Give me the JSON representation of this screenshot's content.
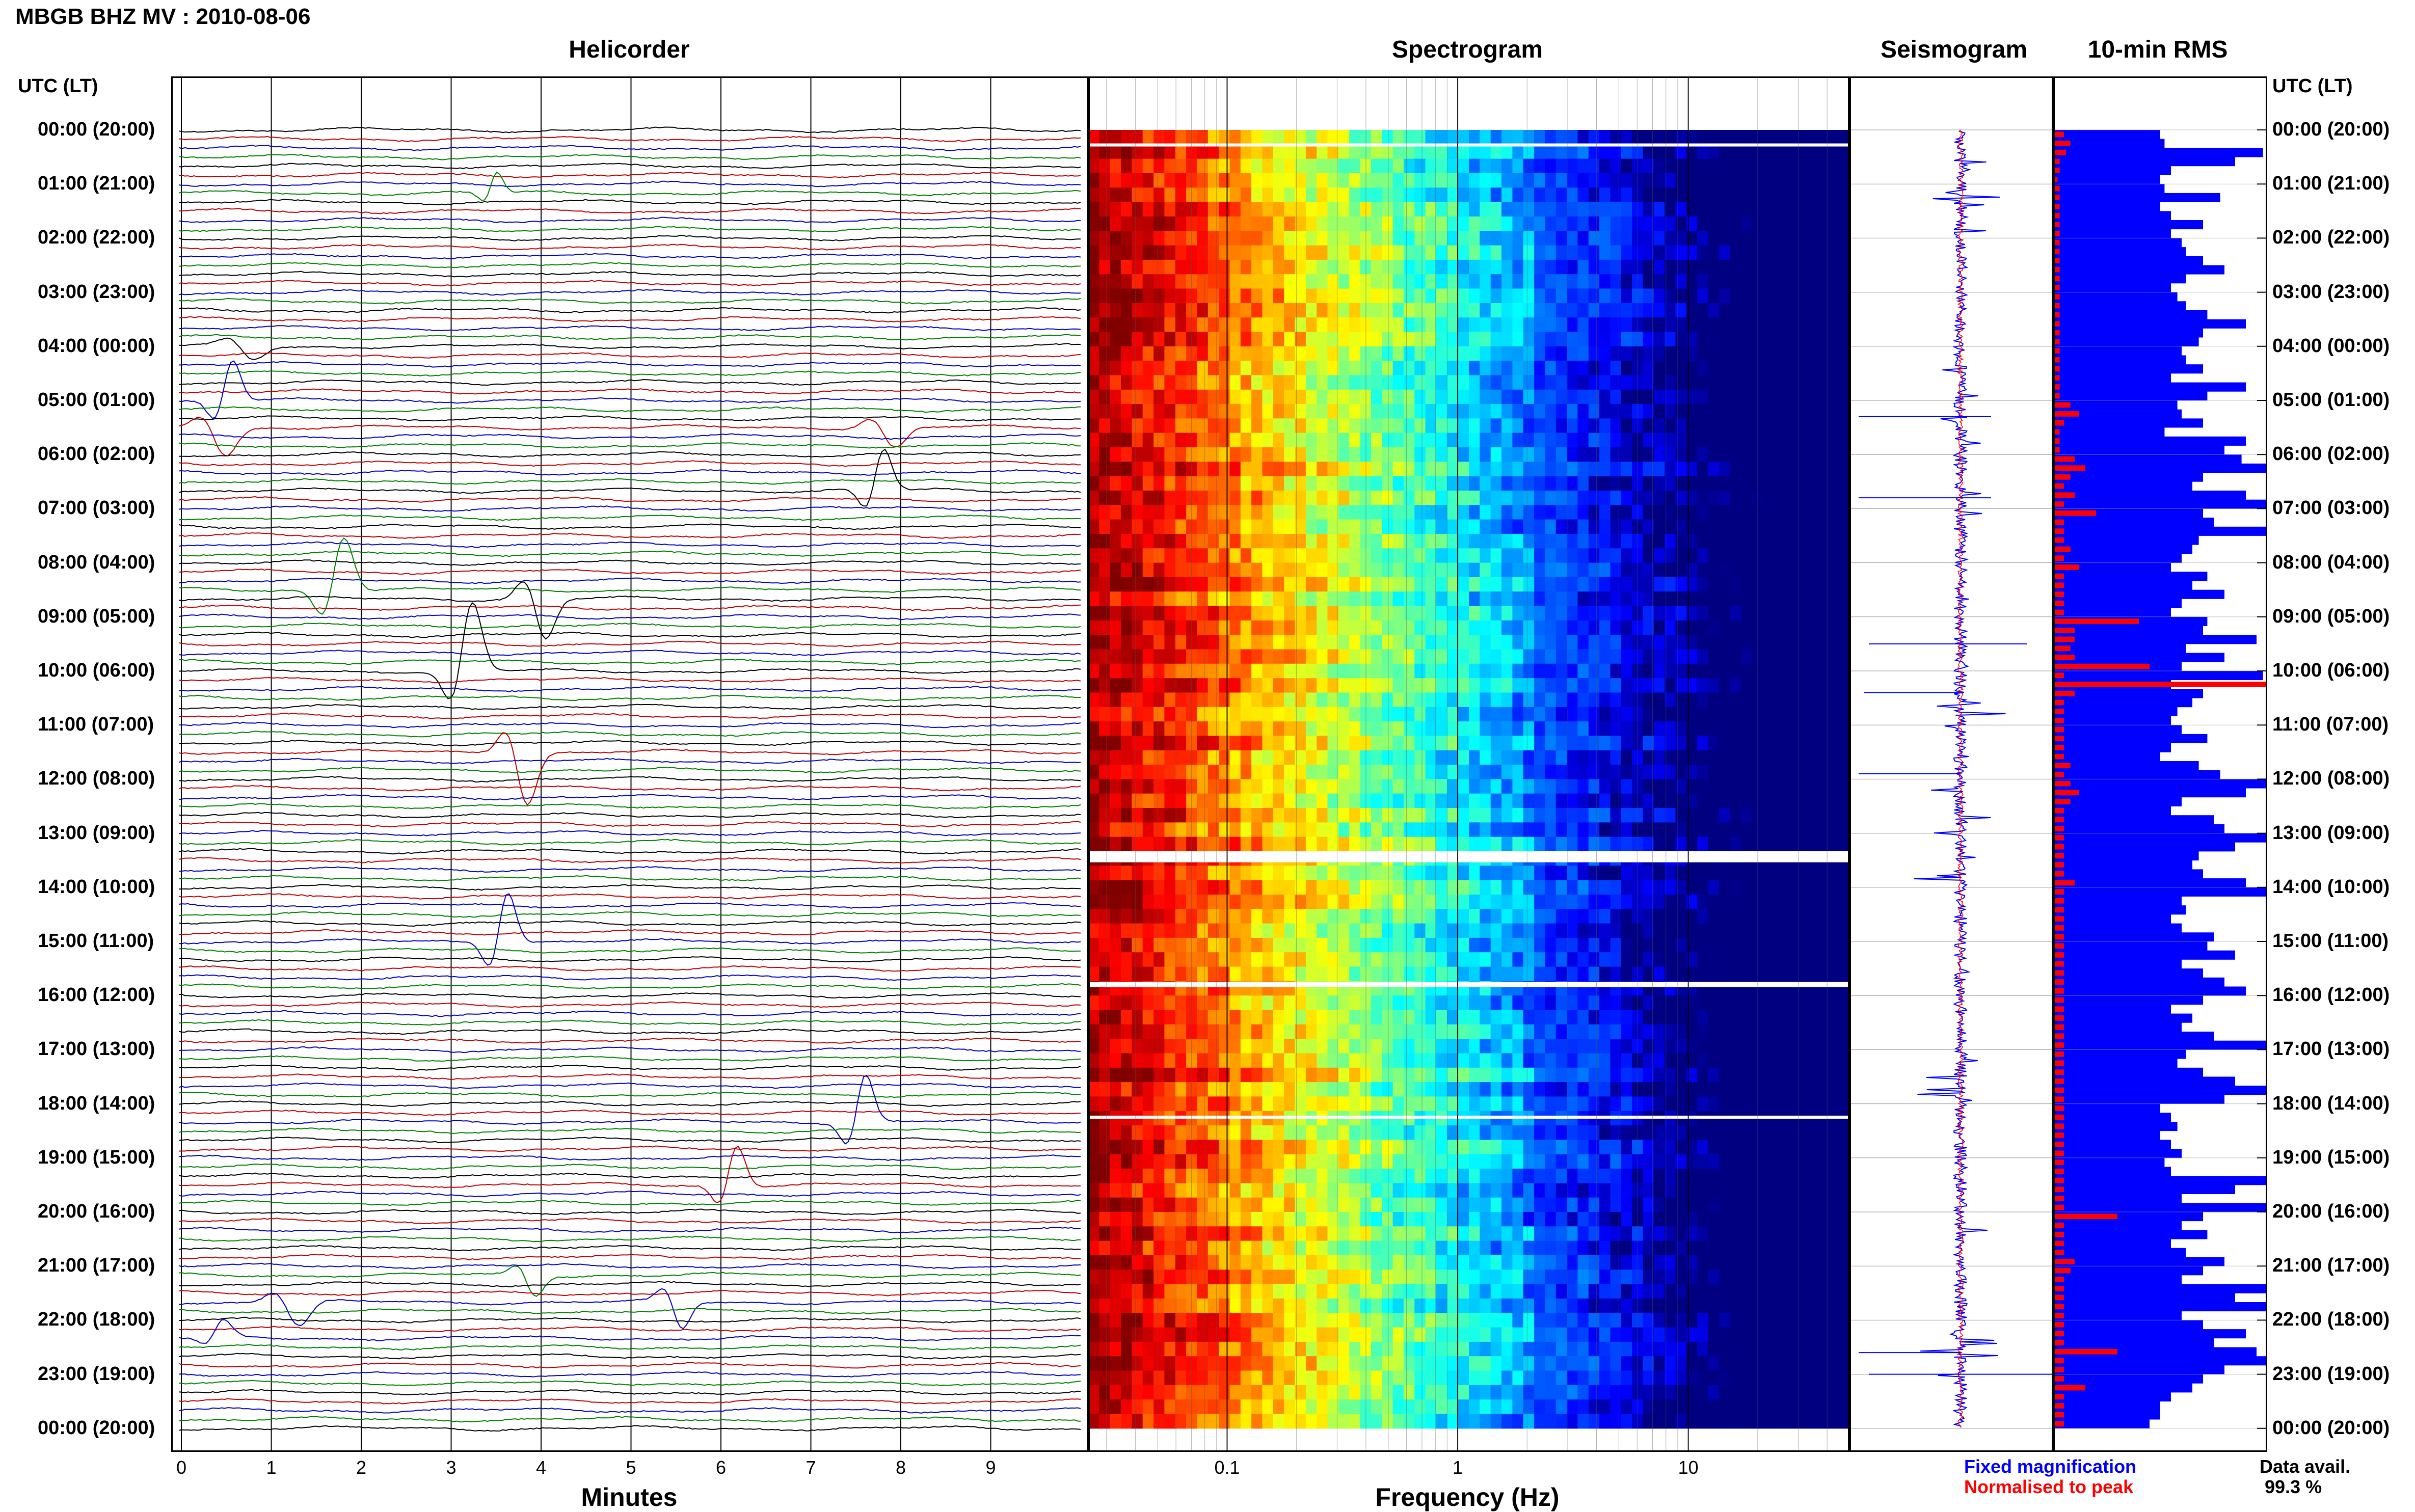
{
  "header": {
    "station_title": "MBGB BHZ MV : 2010-08-06"
  },
  "panels": {
    "helicorder": "Helicorder",
    "spectrogram": "Spectrogram",
    "seismogram": "Seismogram",
    "rms": "10-min RMS"
  },
  "axis": {
    "utc_header_left": "UTC (LT)",
    "utc_header_right": "UTC (LT)",
    "minutes_title": "Minutes",
    "frequency_title": "Frequency (Hz)",
    "minute_ticks": [
      "0",
      "1",
      "2",
      "3",
      "4",
      "5",
      "6",
      "7",
      "8",
      "9"
    ],
    "frequency_ticks": [
      "0.1",
      "1",
      "10"
    ]
  },
  "time_labels": [
    "00:00 (20:00)",
    "01:00 (21:00)",
    "02:00 (22:00)",
    "03:00 (23:00)",
    "04:00 (00:00)",
    "05:00 (01:00)",
    "06:00 (02:00)",
    "07:00 (03:00)",
    "08:00 (04:00)",
    "09:00 (05:00)",
    "10:00 (06:00)",
    "11:00 (07:00)",
    "12:00 (08:00)",
    "13:00 (09:00)",
    "14:00 (10:00)",
    "15:00 (11:00)",
    "16:00 (12:00)",
    "17:00 (13:00)",
    "18:00 (14:00)",
    "19:00 (15:00)",
    "20:00 (16:00)",
    "21:00 (17:00)",
    "22:00 (18:00)",
    "23:00 (19:00)",
    "00:00 (20:00)"
  ],
  "legend": {
    "fixed": "Fixed magnification",
    "normalised": "Normalised to peak",
    "data_avail_label": "Data avail.",
    "data_avail_value": "99.3 %"
  },
  "colors": {
    "trace_black": "#000000",
    "trace_red": "#c00000",
    "trace_blue": "#0000c0",
    "trace_green": "#008000",
    "fixed_magnification": "#0000ff",
    "normalised_to_peak": "#ff0000",
    "spectrogram_low": "#00008b",
    "spectrogram_high": "#ff4500"
  },
  "chart_data": {
    "type": "heatmap",
    "title": "MBGB BHZ MV : 2010-08-06",
    "time_axis": "UTC (LT)",
    "helicorder": {
      "xlabel": "Minutes",
      "xlim": [
        0,
        10
      ],
      "rows_per_hour": 6,
      "hours": 24,
      "trace_colors": [
        "black",
        "red",
        "blue",
        "green"
      ]
    },
    "spectrogram": {
      "xlabel": "Frequency (Hz)",
      "xscale": "log",
      "xlim": [
        0.025,
        50
      ],
      "data_gaps_utc": [
        "00:15",
        "13:20",
        "15:45",
        "18:15"
      ]
    },
    "rms_10min": {
      "note_series": [
        "Fixed magnification",
        "Normalised to peak"
      ],
      "blue_fraction_per_10min": [
        0.5,
        0.52,
        0.98,
        0.85,
        0.55,
        0.5,
        0.52,
        0.78,
        0.5,
        0.55,
        0.7,
        0.55,
        0.6,
        0.62,
        0.7,
        0.8,
        0.62,
        0.55,
        0.58,
        0.62,
        0.72,
        0.9,
        0.7,
        0.68,
        0.6,
        0.62,
        0.7,
        0.55,
        0.9,
        0.72,
        0.58,
        0.6,
        0.7,
        0.52,
        0.9,
        0.8,
        0.88,
        1.0,
        0.7,
        0.65,
        0.9,
        1.0,
        0.7,
        0.75,
        1.0,
        0.68,
        0.65,
        0.6,
        0.55,
        0.72,
        0.65,
        0.8,
        0.6,
        0.55,
        0.72,
        0.7,
        0.95,
        0.62,
        0.8,
        0.6,
        0.98,
        0.55,
        0.7,
        0.65,
        0.58,
        0.55,
        0.6,
        0.72,
        0.55,
        0.5,
        0.68,
        0.78,
        1.0,
        0.9,
        0.6,
        0.55,
        0.75,
        0.8,
        1.0,
        0.85,
        0.68,
        0.65,
        0.7,
        0.9,
        1.0,
        0.6,
        0.62,
        0.55,
        0.6,
        0.75,
        0.72,
        0.85,
        0.6,
        0.7,
        0.8,
        0.9,
        0.7,
        0.55,
        0.65,
        0.6,
        0.75,
        1.0,
        0.62,
        0.58,
        0.7,
        0.85,
        1.0,
        0.8,
        0.5,
        0.55,
        0.58,
        0.5,
        0.55,
        0.6,
        0.52,
        0.55,
        1.0,
        0.85,
        0.6,
        1.0,
        0.7,
        0.6,
        0.72,
        0.55,
        0.62,
        0.8,
        0.7,
        0.6,
        1.0,
        0.85,
        1.0,
        0.6,
        0.7,
        0.9,
        0.75,
        0.95,
        1.0,
        0.8,
        0.7,
        0.65,
        0.55,
        0.5,
        0.5,
        0.45
      ],
      "red_fraction_per_10min": [
        0.05,
        0.08,
        0.06,
        0.03,
        0.03,
        0.02,
        0.03,
        0.03,
        0.03,
        0.03,
        0.03,
        0.03,
        0.03,
        0.03,
        0.03,
        0.03,
        0.03,
        0.03,
        0.03,
        0.03,
        0.03,
        0.03,
        0.03,
        0.03,
        0.03,
        0.03,
        0.03,
        0.03,
        0.03,
        0.03,
        0.08,
        0.12,
        0.05,
        0.03,
        0.03,
        0.03,
        0.1,
        0.15,
        0.08,
        0.05,
        0.1,
        0.05,
        0.2,
        0.05,
        0.05,
        0.05,
        0.08,
        0.05,
        0.12,
        0.05,
        0.05,
        0.05,
        0.05,
        0.05,
        0.4,
        0.1,
        0.1,
        0.08,
        0.1,
        0.45,
        0.05,
        1.0,
        0.1,
        0.05,
        0.05,
        0.05,
        0.05,
        0.05,
        0.05,
        0.05,
        0.08,
        0.05,
        0.08,
        0.12,
        0.08,
        0.05,
        0.05,
        0.05,
        0.05,
        0.05,
        0.05,
        0.05,
        0.05,
        0.1,
        0.05,
        0.05,
        0.05,
        0.05,
        0.05,
        0.05,
        0.05,
        0.05,
        0.05,
        0.05,
        0.05,
        0.05,
        0.05,
        0.05,
        0.05,
        0.05,
        0.05,
        0.05,
        0.05,
        0.05,
        0.05,
        0.05,
        0.05,
        0.05,
        0.05,
        0.05,
        0.05,
        0.05,
        0.05,
        0.05,
        0.05,
        0.05,
        0.05,
        0.05,
        0.05,
        0.05,
        0.3,
        0.05,
        0.05,
        0.05,
        0.05,
        0.1,
        0.08,
        0.05,
        0.05,
        0.05,
        0.05,
        0.05,
        0.05,
        0.05,
        0.05,
        0.3,
        0.05,
        0.05,
        0.05,
        0.15,
        0.05,
        0.05,
        0.05,
        0.05
      ]
    }
  }
}
